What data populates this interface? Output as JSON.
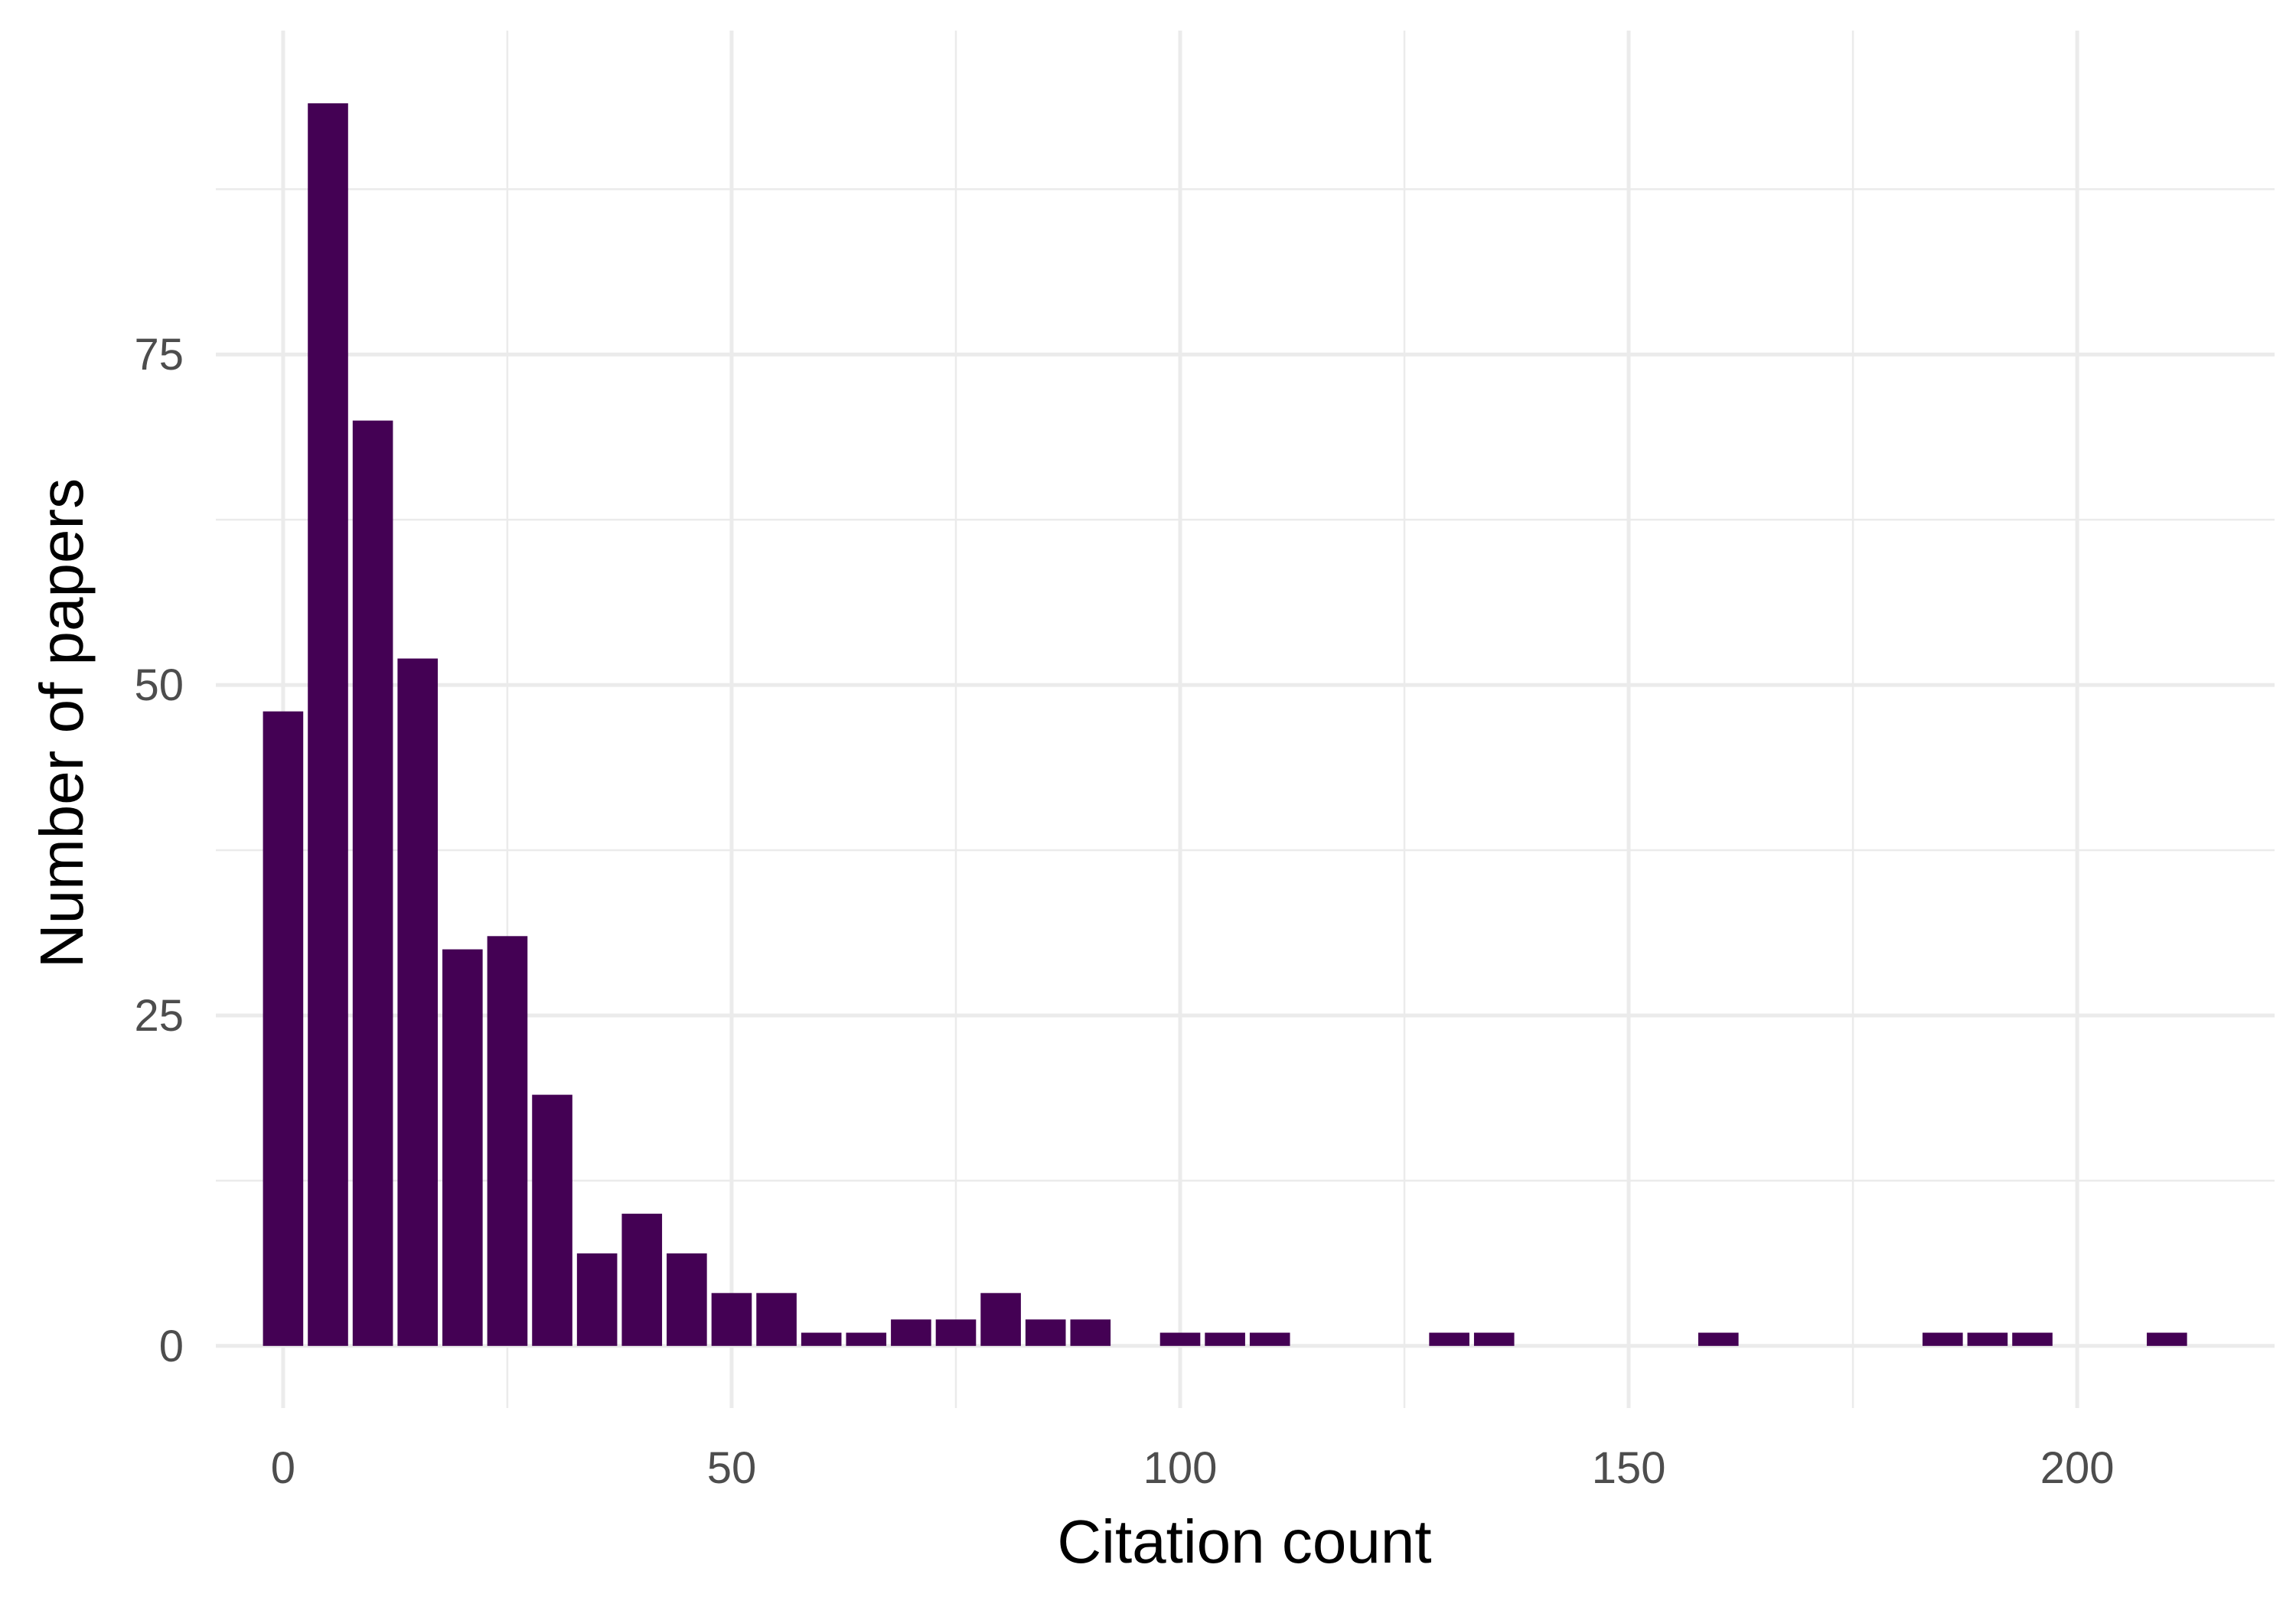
{
  "chart_data": {
    "type": "bar",
    "xlabel": "Citation count",
    "ylabel": "Number of papers",
    "xlim": [
      -7.5,
      222
    ],
    "ylim": [
      -4.7,
      99.5
    ],
    "x_ticks": [
      0,
      50,
      100,
      150,
      200
    ],
    "y_ticks": [
      0,
      25,
      50,
      75
    ],
    "bin_width": 5,
    "bar_color": "#440154",
    "bins": [
      {
        "x": 0,
        "count": 48
      },
      {
        "x": 5,
        "count": 94
      },
      {
        "x": 10,
        "count": 70
      },
      {
        "x": 15,
        "count": 52
      },
      {
        "x": 20,
        "count": 30
      },
      {
        "x": 25,
        "count": 31
      },
      {
        "x": 30,
        "count": 19
      },
      {
        "x": 35,
        "count": 7
      },
      {
        "x": 40,
        "count": 10
      },
      {
        "x": 45,
        "count": 7
      },
      {
        "x": 50,
        "count": 4
      },
      {
        "x": 55,
        "count": 4
      },
      {
        "x": 60,
        "count": 1
      },
      {
        "x": 65,
        "count": 1
      },
      {
        "x": 70,
        "count": 2
      },
      {
        "x": 75,
        "count": 2
      },
      {
        "x": 80,
        "count": 4
      },
      {
        "x": 85,
        "count": 2
      },
      {
        "x": 90,
        "count": 2
      },
      {
        "x": 100,
        "count": 1
      },
      {
        "x": 105,
        "count": 1
      },
      {
        "x": 110,
        "count": 1
      },
      {
        "x": 130,
        "count": 1
      },
      {
        "x": 135,
        "count": 1
      },
      {
        "x": 160,
        "count": 1
      },
      {
        "x": 185,
        "count": 1
      },
      {
        "x": 190,
        "count": 1
      },
      {
        "x": 195,
        "count": 1
      },
      {
        "x": 210,
        "count": 1
      }
    ],
    "grid": true,
    "legend": "none"
  }
}
